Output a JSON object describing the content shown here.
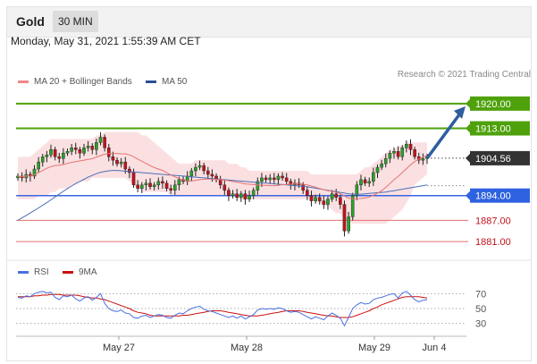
{
  "header": {
    "asset": "Gold",
    "timeframe": "30 MIN"
  },
  "datetime": "Monday, May 31, 2021 1:55:39 AM CET",
  "legend": {
    "ma20_bb": "MA 20 + Bollinger Bands",
    "ma50": "MA 50",
    "rsi": "RSI",
    "ma9": "9MA"
  },
  "credit": "Research © 2021 Trading Central",
  "colors": {
    "up": "#2aa02a",
    "down": "#c0141c",
    "ma20": "#e57373",
    "bands": "#fadadd",
    "ma50": "#4a6fb5",
    "green_level": "#4ea10b",
    "blue_level": "#3a66e0",
    "red_level": "#e07070",
    "arrow": "#2f5e9e",
    "rsi": "#4a6fe0",
    "rsi_ma": "#cc1111"
  },
  "chart_data": [
    {
      "type": "candlestick",
      "title": "Gold 30 MIN",
      "x_labels": [
        "May 27",
        "May 28",
        "May 29",
        "Jun 4"
      ],
      "ylim": [
        1878,
        1924
      ],
      "levels": [
        {
          "value": 1920.0,
          "label": "1920.00",
          "kind": "resistance"
        },
        {
          "value": 1913.0,
          "label": "1913.00",
          "kind": "resistance"
        },
        {
          "value": 1904.56,
          "label": "1904.56",
          "kind": "last"
        },
        {
          "value": 1894.0,
          "label": "1894.00",
          "kind": "pivot"
        },
        {
          "value": 1887.0,
          "label": "1887.00",
          "kind": "support"
        },
        {
          "value": 1881.0,
          "label": "1881.00",
          "kind": "support"
        }
      ],
      "close": [
        1899.5,
        1899.0,
        1900.0,
        1899.5,
        1901.5,
        1903.5,
        1905.0,
        1905.5,
        1907.0,
        1905.0,
        1904.5,
        1906.0,
        1906.5,
        1907.5,
        1907.0,
        1906.0,
        1907.5,
        1908.0,
        1907.0,
        1909.0,
        1910.5,
        1907.5,
        1905.0,
        1904.0,
        1903.0,
        1903.5,
        1901.5,
        1900.5,
        1897.0,
        1896.0,
        1897.0,
        1897.5,
        1896.5,
        1897.0,
        1898.0,
        1897.5,
        1896.0,
        1895.5,
        1897.0,
        1898.5,
        1898.0,
        1899.5,
        1901.0,
        1902.0,
        1902.5,
        1901.0,
        1900.0,
        1899.5,
        1898.5,
        1897.0,
        1895.5,
        1894.0,
        1894.5,
        1893.5,
        1894.5,
        1893.0,
        1894.0,
        1895.5,
        1898.0,
        1899.0,
        1898.5,
        1899.0,
        1898.5,
        1899.5,
        1899.0,
        1898.0,
        1897.0,
        1897.5,
        1897.0,
        1895.5,
        1894.0,
        1892.5,
        1893.5,
        1892.5,
        1891.5,
        1893.0,
        1894.5,
        1893.5,
        1891.5,
        1884.0,
        1888.0,
        1894.0,
        1897.0,
        1898.5,
        1897.5,
        1898.0,
        1900.5,
        1902.0,
        1903.0,
        1904.5,
        1906.0,
        1906.5,
        1905.0,
        1907.5,
        1908.5,
        1907.0,
        1905.0,
        1904.0,
        1904.5,
        1905.0
      ],
      "ma20": [
        1899.5,
        1899.3,
        1899.5,
        1899.5,
        1899.9,
        1900.5,
        1901.1,
        1901.7,
        1902.2,
        1902.5,
        1902.6,
        1902.8,
        1903.1,
        1903.4,
        1903.6,
        1903.8,
        1904.0,
        1904.2,
        1904.4,
        1904.9,
        1905.3,
        1905.7,
        1905.9,
        1905.9,
        1905.9,
        1905.8,
        1905.8,
        1905.5,
        1905.0,
        1904.3,
        1903.7,
        1903.1,
        1902.5,
        1901.9,
        1901.5,
        1901.1,
        1900.5,
        1899.8,
        1899.3,
        1898.8,
        1898.4,
        1898.1,
        1898.1,
        1898.3,
        1898.5,
        1898.6,
        1898.7,
        1898.6,
        1898.6,
        1898.5,
        1898.4,
        1898.2,
        1898.0,
        1897.8,
        1897.6,
        1897.3,
        1897.2,
        1897.1,
        1897.0,
        1896.9,
        1896.9,
        1896.8,
        1896.8,
        1896.9,
        1897.1,
        1897.1,
        1897.2,
        1897.3,
        1897.3,
        1897.2,
        1897.0,
        1896.7,
        1896.4,
        1896.0,
        1895.7,
        1895.4,
        1895.2,
        1894.9,
        1894.6,
        1893.9,
        1893.3,
        1893.1,
        1893.1,
        1893.2,
        1893.3,
        1893.6,
        1894.1,
        1894.7,
        1895.4,
        1896.3,
        1897.4,
        1898.5,
        1899.4,
        1900.5,
        1901.6,
        1902.7,
        1903.6,
        1904.3,
        1904.9,
        1905.3
      ],
      "ma50": [
        1887.0,
        1887.7,
        1888.4,
        1889.1,
        1889.8,
        1890.5,
        1891.3,
        1892.0,
        1892.8,
        1893.6,
        1894.4,
        1895.2,
        1896.0,
        1896.7,
        1897.4,
        1898.0,
        1898.6,
        1899.2,
        1899.7,
        1900.2,
        1900.6,
        1900.8,
        1901.0,
        1901.1,
        1901.1,
        1901.0,
        1900.9,
        1900.8,
        1900.7,
        1900.6,
        1900.5,
        1900.4,
        1900.3,
        1900.2,
        1900.1,
        1900.0,
        1899.9,
        1899.8,
        1899.7,
        1899.6,
        1899.5,
        1899.4,
        1899.3,
        1899.2,
        1899.1,
        1899.0,
        1898.9,
        1898.8,
        1898.7,
        1898.6,
        1898.5,
        1898.4,
        1898.3,
        1898.2,
        1898.1,
        1898.0,
        1897.9,
        1897.8,
        1897.7,
        1897.6,
        1897.5,
        1897.4,
        1897.3,
        1897.2,
        1897.1,
        1897.0,
        1896.9,
        1896.8,
        1896.7,
        1896.6,
        1896.5,
        1896.3,
        1896.1,
        1895.9,
        1895.7,
        1895.5,
        1895.3,
        1895.1,
        1894.9,
        1894.7,
        1894.5,
        1894.4,
        1894.4,
        1894.4,
        1894.5,
        1894.6,
        1894.7,
        1894.8,
        1894.9,
        1895.0,
        1895.2,
        1895.4,
        1895.6,
        1895.8,
        1896.0,
        1896.2,
        1896.4,
        1896.6,
        1896.8,
        1897.0
      ],
      "bb_upper": [
        1905,
        1905,
        1905,
        1905,
        1906,
        1907,
        1908,
        1909,
        1910,
        1910,
        1910,
        1910,
        1910,
        1910,
        1910,
        1910,
        1910,
        1910,
        1910,
        1911,
        1911,
        1912,
        1912,
        1912,
        1912,
        1912,
        1912,
        1912,
        1912,
        1912,
        1911,
        1911,
        1910,
        1909,
        1908,
        1907,
        1906,
        1905,
        1904,
        1903,
        1903,
        1903,
        1903,
        1904,
        1904,
        1904,
        1904,
        1904,
        1904,
        1904,
        1904,
        1903,
        1903,
        1903,
        1902,
        1902,
        1901,
        1901,
        1901,
        1901,
        1901,
        1901,
        1901,
        1901,
        1901,
        1901,
        1901,
        1901,
        1901,
        1901,
        1901,
        1900,
        1900,
        1900,
        1900,
        1900,
        1900,
        1900,
        1900,
        1900,
        1900,
        1900,
        1900,
        1901,
        1902,
        1902,
        1903,
        1904,
        1905,
        1906,
        1907,
        1907,
        1908,
        1908,
        1909,
        1909,
        1909,
        1909,
        1909,
        1909
      ],
      "bb_lower": [
        1893,
        1893,
        1893,
        1893,
        1893,
        1894,
        1894,
        1894,
        1895,
        1895,
        1896,
        1896,
        1896,
        1897,
        1897,
        1898,
        1898,
        1898,
        1899,
        1899,
        1899,
        1899,
        1899,
        1899,
        1899,
        1899,
        1899,
        1898,
        1897,
        1896,
        1895,
        1895,
        1895,
        1895,
        1895,
        1895,
        1895,
        1894,
        1894,
        1894,
        1894,
        1894,
        1894,
        1894,
        1894,
        1894,
        1894,
        1894,
        1894,
        1894,
        1894,
        1894,
        1894,
        1893,
        1893,
        1893,
        1893,
        1893,
        1893,
        1893,
        1893,
        1893,
        1893,
        1893,
        1893,
        1893,
        1893,
        1893,
        1893,
        1893,
        1893,
        1893,
        1892,
        1892,
        1891,
        1891,
        1890,
        1889,
        1889,
        1887,
        1887,
        1886,
        1886,
        1886,
        1886,
        1886,
        1886,
        1886,
        1886,
        1886,
        1887,
        1888,
        1889,
        1890,
        1892,
        1894,
        1897,
        1898,
        1899,
        1900
      ],
      "projection": {
        "from": 1904.56,
        "to": 1920.0
      }
    },
    {
      "type": "line",
      "title": "RSI",
      "ylim": [
        20,
        80
      ],
      "ticks": [
        70,
        50,
        30
      ],
      "series": [
        {
          "name": "RSI",
          "values": [
            65,
            64,
            67,
            66,
            70,
            72,
            73,
            71,
            72,
            65,
            62,
            67,
            66,
            68,
            63,
            60,
            64,
            66,
            61,
            65,
            70,
            57,
            50,
            47,
            46,
            48,
            44,
            43,
            38,
            37,
            40,
            41,
            38,
            40,
            42,
            41,
            38,
            37,
            41,
            44,
            43,
            47,
            50,
            52,
            53,
            49,
            47,
            46,
            44,
            42,
            40,
            38,
            40,
            37,
            40,
            36,
            39,
            42,
            48,
            50,
            49,
            50,
            49,
            51,
            50,
            47,
            45,
            46,
            45,
            42,
            39,
            36,
            39,
            37,
            35,
            40,
            44,
            41,
            37,
            27,
            38,
            50,
            55,
            58,
            56,
            57,
            62,
            64,
            65,
            67,
            69,
            70,
            64,
            71,
            73,
            68,
            62,
            59,
            61,
            62
          ]
        },
        {
          "name": "9MA",
          "values": [
            66,
            66,
            66,
            66,
            67,
            67,
            68,
            68,
            69,
            69,
            69,
            68,
            68,
            68,
            68,
            67,
            66,
            65,
            64,
            64,
            63,
            62,
            60,
            58,
            56,
            54,
            52,
            50,
            47,
            45,
            44,
            43,
            41,
            40,
            40,
            40,
            40,
            40,
            40,
            40,
            41,
            41,
            42,
            43,
            44,
            45,
            46,
            47,
            47,
            47,
            46,
            45,
            44,
            43,
            42,
            41,
            40,
            40,
            40,
            41,
            42,
            43,
            44,
            45,
            46,
            47,
            47,
            47,
            47,
            46,
            45,
            44,
            43,
            42,
            41,
            40,
            40,
            39,
            38,
            38,
            38,
            39,
            41,
            43,
            45,
            47,
            50,
            52,
            55,
            57,
            59,
            61,
            63,
            65,
            66,
            66,
            66,
            66,
            65,
            64
          ]
        }
      ]
    }
  ]
}
